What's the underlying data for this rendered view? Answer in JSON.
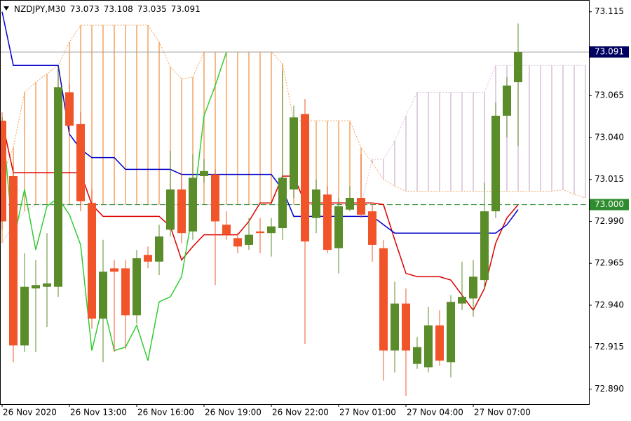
{
  "chart_data": {
    "type": "candlestick",
    "title": "NZDJPY,M30",
    "categories": [
      "26 Nov 2020",
      null,
      null,
      null,
      null,
      null,
      "26 Nov 13:00",
      null,
      null,
      null,
      null,
      null,
      "26 Nov 16:00",
      null,
      null,
      null,
      null,
      null,
      "26 Nov 19:00",
      null,
      null,
      null,
      null,
      null,
      "26 Nov 22:00",
      null,
      null,
      null,
      null,
      null,
      "27 Nov 01:00",
      null,
      null,
      null,
      null,
      null,
      "27 Nov 04:00",
      null,
      null,
      null,
      null,
      null,
      "27 Nov 07:00",
      null,
      null,
      null,
      null,
      null,
      null,
      null,
      null,
      null,
      null
    ],
    "open": [
      73.05,
      73.017,
      72.916,
      72.95,
      72.951,
      72.951,
      73.067,
      73.048,
      73.001,
      72.932,
      72.962,
      72.962,
      72.934,
      72.97,
      72.966,
      72.985,
      73.009,
      72.984,
      73.017,
      73.018,
      72.988,
      72.98,
      72.976,
      72.984,
      72.983,
      72.986,
      73.009,
      73.054,
      72.992,
      73.006,
      72.974,
      72.997,
      73.004,
      72.996,
      72.974,
      72.913,
      72.941,
      72.905,
      72.903,
      72.928,
      72.906,
      72.941,
      72.944,
      72.955,
      72.996,
      73.053,
      73.073,
      null,
      null,
      null,
      null,
      null,
      null
    ],
    "high": [
      73.055,
      73.023,
      72.971,
      72.967,
      72.983,
      73.082,
      73.072,
      73.055,
      73.009,
      72.979,
      72.967,
      72.967,
      72.973,
      72.975,
      72.988,
      73.032,
      73.019,
      73.03,
      73.027,
      73.021,
      72.996,
      72.983,
      72.992,
      72.992,
      72.992,
      73.08,
      73.059,
      73.063,
      73.015,
      73.011,
      73.004,
      73.011,
      73.03,
      73.0,
      72.979,
      72.954,
      72.95,
      72.921,
      72.939,
      72.937,
      72.946,
      72.966,
      72.967,
      73.013,
      73.061,
      73.076,
      73.108,
      null,
      null,
      null,
      null,
      null,
      null
    ],
    "low": [
      72.985,
      72.906,
      72.912,
      72.912,
      72.927,
      72.945,
      73.042,
      72.996,
      72.926,
      72.906,
      72.912,
      72.914,
      72.929,
      72.962,
      72.958,
      72.981,
      72.977,
      72.979,
      73.013,
      72.952,
      72.979,
      72.971,
      72.973,
      72.971,
      72.969,
      72.979,
      73.004,
      72.917,
      72.983,
      72.971,
      72.959,
      72.996,
      72.992,
      72.966,
      72.895,
      72.9,
      72.886,
      72.902,
      72.9,
      72.904,
      72.897,
      72.937,
      72.933,
      72.95,
      72.992,
      73.04,
      73.035,
      null,
      null,
      null,
      null,
      null,
      null
    ],
    "close": [
      72.99,
      72.916,
      72.951,
      72.952,
      72.953,
      73.07,
      73.047,
      73.002,
      72.932,
      72.96,
      72.96,
      72.934,
      72.968,
      72.966,
      72.981,
      73.009,
      72.983,
      73.016,
      73.02,
      72.99,
      72.982,
      72.975,
      72.982,
      72.983,
      72.987,
      73.016,
      73.052,
      72.978,
      73.009,
      72.973,
      72.999,
      73.004,
      72.994,
      72.976,
      72.913,
      72.941,
      72.913,
      72.915,
      72.928,
      72.907,
      72.942,
      72.945,
      72.957,
      72.996,
      73.053,
      73.071,
      73.091,
      null,
      null,
      null,
      null,
      null,
      null
    ],
    "up_color": "#5b8c2a",
    "down_color": "#f2542a",
    "lines": [
      {
        "color": "#dd0000",
        "style": "solid",
        "values": [
          73.05,
          73.019,
          73.019,
          73.019,
          73.019,
          73.019,
          73.019,
          73.019,
          73.0,
          72.993,
          72.993,
          72.993,
          72.993,
          72.993,
          72.993,
          72.987,
          72.967,
          72.975,
          72.982,
          72.982,
          72.982,
          72.982,
          72.99,
          73.001,
          73.001,
          73.017,
          73.017,
          73.001,
          73.001,
          73.001,
          73.001,
          73.001,
          73.001,
          73.001,
          73.0,
          72.979,
          72.959,
          72.957,
          72.957,
          72.957,
          72.955,
          72.946,
          72.937,
          72.95,
          72.977,
          72.992,
          73.0,
          null,
          null,
          null,
          null,
          null,
          null
        ]
      },
      {
        "color": "#0000cc",
        "style": "solid",
        "values": [
          73.115,
          73.083,
          73.083,
          73.083,
          73.083,
          73.083,
          73.042,
          73.033,
          73.028,
          73.028,
          73.028,
          73.021,
          73.021,
          73.021,
          73.021,
          73.021,
          73.018,
          73.018,
          73.018,
          73.018,
          73.018,
          73.018,
          73.018,
          73.018,
          73.018,
          73.009,
          72.993,
          72.993,
          72.993,
          72.993,
          72.993,
          72.993,
          72.993,
          72.993,
          72.988,
          72.983,
          72.983,
          72.983,
          72.983,
          72.983,
          72.983,
          72.983,
          72.983,
          72.983,
          72.983,
          72.988,
          72.997,
          null,
          null,
          null,
          null,
          null,
          null
        ]
      },
      {
        "color": "#33cc33",
        "style": "solid",
        "values": [
          73.052,
          72.978,
          73.009,
          72.973,
          72.999,
          73.004,
          72.994,
          72.976,
          72.913,
          72.941,
          72.913,
          72.915,
          72.928,
          72.907,
          72.942,
          72.945,
          72.957,
          72.996,
          73.053,
          73.071,
          73.091,
          null,
          null,
          null,
          null,
          null,
          null,
          null,
          null,
          null,
          null,
          null,
          null,
          null,
          null,
          null,
          null,
          null,
          null,
          null,
          null,
          null,
          null,
          null,
          null,
          null,
          null,
          null,
          null,
          null,
          null,
          null,
          null
        ]
      }
    ],
    "cloud": {
      "up_color": "#f4a460",
      "down_color": "#d8bfd8",
      "span_a": [
        73.017,
        73.034,
        73.067,
        73.073,
        73.078,
        73.083,
        73.097,
        73.107,
        73.107,
        73.107,
        73.107,
        73.107,
        73.107,
        73.107,
        73.097,
        73.082,
        73.075,
        73.076,
        73.091,
        73.091,
        73.091,
        73.091,
        73.091,
        73.091,
        73.091,
        73.084,
        73.05,
        73.05,
        73.05,
        73.05,
        73.05,
        73.05,
        73.034,
        73.025,
        73.015,
        73.011,
        73.008,
        73.008,
        73.008,
        73.008,
        73.008,
        73.008,
        73.008,
        73.008,
        73.008,
        73.008,
        73.008,
        73.008,
        73.008,
        73.008,
        73.009,
        73.006,
        73.004
      ],
      "span_b": [
        72.977,
        72.988,
        72.996,
        73.0,
        73.0,
        73.0,
        73.0,
        73.0,
        73.0,
        73.0,
        73.0,
        73.0,
        73.0,
        73.0,
        73.0,
        73.0,
        73.0,
        73.0,
        73.0,
        73.0,
        73.0,
        73.0,
        73.0,
        73.0,
        73.0,
        73.0,
        73.0,
        73.0,
        73.0,
        73.0,
        73.0,
        73.0,
        73.0,
        73.027,
        73.027,
        73.038,
        73.053,
        73.067,
        73.067,
        73.067,
        73.067,
        73.067,
        73.067,
        73.067,
        73.083,
        73.083,
        73.083,
        73.083,
        73.083,
        73.083,
        73.083,
        73.083,
        73.083
      ]
    },
    "bid_line_color": "#a0a0a0",
    "bid_box_color": "#000060",
    "levels": [
      {
        "value": 73.0,
        "label": "73.000",
        "color": "#2e8b2e"
      }
    ],
    "ylim": [
      72.881,
      73.122
    ],
    "yticks": [
      73.115,
      73.065,
      {
        "value": 73.04,
        "label": "73.040"
      },
      73.015,
      {
        "value": 72.99,
        "label": "72.990"
      },
      72.965,
      {
        "value": 72.94,
        "label": "72.940"
      },
      72.915,
      {
        "value": 72.89,
        "label": "72.890"
      }
    ]
  }
}
